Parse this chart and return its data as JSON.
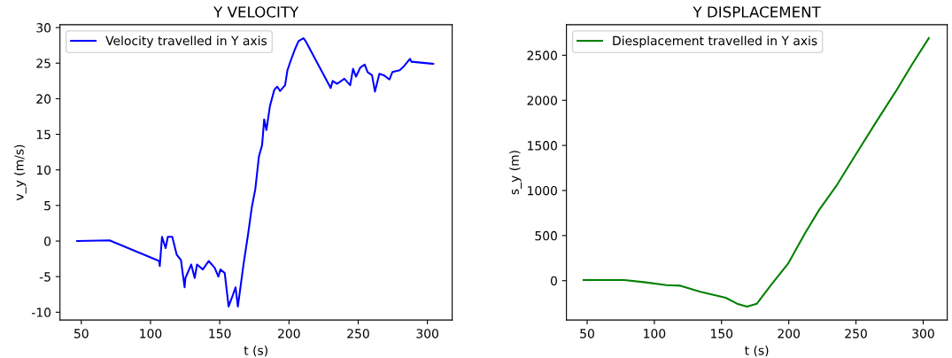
{
  "chart_data": [
    {
      "type": "line",
      "title": "Y VELOCITY",
      "xlabel": "t (s)",
      "ylabel": "v_y (m/s)",
      "legend": "top left",
      "grid": false,
      "xlim": [
        34.6,
        317.9
      ],
      "xticks": [
        50,
        100,
        150,
        200,
        250,
        300
      ],
      "ylim": [
        -11.1,
        30.4
      ],
      "yticks": [
        -10,
        -5,
        0,
        5,
        10,
        15,
        20,
        25,
        30
      ],
      "series": [
        {
          "name": "Velocity travelled in Y axis",
          "color": "#0000ff",
          "x": [
            47,
            70.4,
            106.2,
            106.7,
            108.3,
            110.9,
            112.5,
            115.7,
            118.9,
            122,
            124.6,
            125.2,
            129.4,
            131.9,
            133.6,
            137.8,
            142,
            146.3,
            149,
            150.5,
            153.6,
            156.4,
            158.9,
            161.4,
            163.1,
            167.3,
            170.5,
            173.2,
            175.7,
            178.3,
            180.6,
            182.1,
            183.7,
            186.3,
            189.4,
            191.5,
            193.6,
            197.2,
            198.9,
            201,
            204.2,
            206.9,
            210.5,
            212,
            230.1,
            231.6,
            234.7,
            240,
            244.2,
            246.3,
            248.4,
            251.6,
            254.7,
            256.8,
            260,
            262.1,
            265.3,
            268.5,
            272.6,
            274.7,
            280,
            283.2,
            287.4,
            288.5,
            304.2
          ],
          "values": [
            0,
            0.1,
            -2.8,
            -3.5,
            0.6,
            -1.0,
            0.6,
            0.6,
            -1.9,
            -2.7,
            -6.5,
            -5.2,
            -3.3,
            -5.2,
            -3.3,
            -4,
            -2.8,
            -3.75,
            -5,
            -4,
            -4.5,
            -9.2,
            -7.9,
            -6.5,
            -9.2,
            -3.1,
            1.0,
            4.8,
            7.3,
            11.9,
            13.5,
            17.1,
            15.6,
            19,
            21.25,
            21.7,
            21.1,
            21.9,
            24,
            25.2,
            26.9,
            28.1,
            28.5,
            28.1,
            21.5,
            22.5,
            22.1,
            22.8,
            21.9,
            24.2,
            23.1,
            24.4,
            24.8,
            23.75,
            23.3,
            21.0,
            23.5,
            23.3,
            22.7,
            23.75,
            24,
            24.6,
            25.6,
            25.2,
            24.9
          ]
        }
      ]
    },
    {
      "type": "line",
      "title": "Y DISPLACEMENT",
      "xlabel": "t (s)",
      "ylabel": "s_y (m)",
      "legend": "top left",
      "grid": false,
      "xlim": [
        34.6,
        317.9
      ],
      "xticks": [
        50,
        100,
        150,
        200,
        250,
        300
      ],
      "ylim": [
        -437,
        2839
      ],
      "yticks": [
        0,
        500,
        1000,
        1500,
        2000,
        2500
      ],
      "series": [
        {
          "name": "Diesplacement travelled in Y axis",
          "color": "#008000",
          "x": [
            47.3,
            77.4,
            92.1,
            108.9,
            119.4,
            134.2,
            153.1,
            161.5,
            168.9,
            176.3,
            186.8,
            199.8,
            212.0,
            222.6,
            235.2,
            249.9,
            264.6,
            279.4,
            292,
            304.2
          ],
          "values": [
            7,
            7,
            -16,
            -49,
            -56,
            -124,
            -190,
            -255,
            -288,
            -255,
            -49,
            196,
            523,
            785,
            1047,
            1400,
            1750,
            2094,
            2405,
            2690
          ]
        }
      ]
    }
  ]
}
